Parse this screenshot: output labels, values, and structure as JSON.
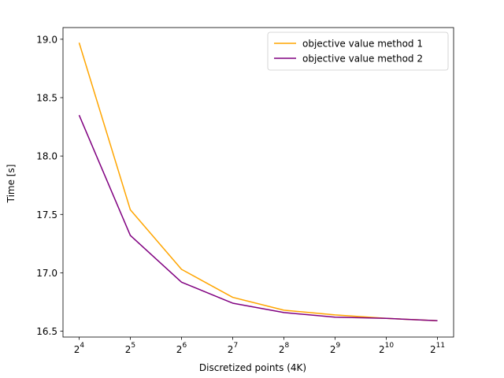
{
  "chart_data": {
    "type": "line",
    "xlabel": "Discretized points (4K)",
    "ylabel": "Time [s]",
    "x_scale": "log2",
    "x": [
      16,
      32,
      64,
      128,
      256,
      512,
      1024,
      2048
    ],
    "x_tick_labels": [
      {
        "base": "2",
        "exp": "4"
      },
      {
        "base": "2",
        "exp": "5"
      },
      {
        "base": "2",
        "exp": "6"
      },
      {
        "base": "2",
        "exp": "7"
      },
      {
        "base": "2",
        "exp": "8"
      },
      {
        "base": "2",
        "exp": "9"
      },
      {
        "base": "2",
        "exp": "10"
      },
      {
        "base": "2",
        "exp": "11"
      }
    ],
    "y_ticks": [
      16.5,
      17.0,
      17.5,
      18.0,
      18.5,
      19.0
    ],
    "y_tick_labels": [
      "16.5",
      "17.0",
      "17.5",
      "18.0",
      "18.5",
      "19.0"
    ],
    "ylim": [
      16.45,
      19.1
    ],
    "grid": false,
    "legend_position": "top-right",
    "series": [
      {
        "name": "objective value method 1",
        "color": "#ffa500",
        "values": [
          18.97,
          17.54,
          17.03,
          16.79,
          16.68,
          16.64,
          16.61,
          16.59
        ]
      },
      {
        "name": "objective value method 2",
        "color": "#800080",
        "values": [
          18.35,
          17.32,
          16.92,
          16.74,
          16.66,
          16.62,
          16.61,
          16.59
        ]
      }
    ]
  }
}
